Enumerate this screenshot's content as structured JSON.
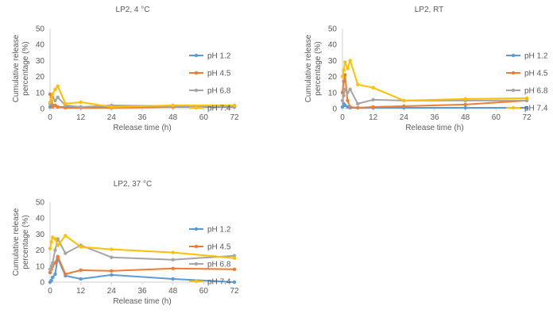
{
  "colors": {
    "pH 1.2": "#5B9BD5",
    "pH 4.5": "#ED7D31",
    "pH 6.8": "#A5A5A5",
    "pH 7.4": "#FFC000"
  },
  "chart_data": [
    {
      "type": "line",
      "title": "LP2, 4 °C",
      "xlabel": "Release time (h)",
      "ylabel": "Cumulative release percentage (%)",
      "xlim": [
        0,
        72
      ],
      "ylim": [
        0,
        50
      ],
      "xticks": [
        0,
        12,
        24,
        36,
        48,
        60,
        72
      ],
      "yticks": [
        0,
        10,
        20,
        30,
        40,
        50
      ],
      "legend": "right",
      "grid": false,
      "series": [
        {
          "name": "pH 1.2",
          "x": [
            0,
            0.5,
            1,
            2,
            3,
            6,
            12,
            24,
            48,
            72
          ],
          "y": [
            1,
            3,
            2,
            2,
            1,
            1,
            1,
            1,
            1,
            1
          ]
        },
        {
          "name": "pH 4.5",
          "x": [
            0,
            0.5,
            1,
            2,
            3,
            6,
            12,
            24,
            48,
            72
          ],
          "y": [
            9,
            7,
            1,
            2,
            1,
            0.5,
            0.5,
            0.5,
            1,
            1.5
          ]
        },
        {
          "name": "pH 6.8",
          "x": [
            0,
            0.5,
            1,
            2,
            3,
            6,
            12,
            24,
            48,
            72
          ],
          "y": [
            3,
            5,
            7,
            5,
            7,
            2,
            1,
            2,
            1.5,
            1.5
          ]
        },
        {
          "name": "pH 7.4",
          "x": [
            0,
            0.5,
            1,
            2,
            3,
            6,
            12,
            24,
            48,
            72
          ],
          "y": [
            4,
            6,
            9,
            12,
            14,
            3,
            4,
            1,
            2,
            2
          ]
        }
      ]
    },
    {
      "type": "line",
      "title": "LP2, RT",
      "xlabel": "Release time (h)",
      "ylabel": "Cumulative release percentage (%)",
      "xlim": [
        0,
        72
      ],
      "ylim": [
        0,
        50
      ],
      "xticks": [
        0,
        12,
        24,
        36,
        48,
        60,
        72
      ],
      "yticks": [
        0,
        10,
        20,
        30,
        40,
        50
      ],
      "legend": "right",
      "grid": false,
      "series": [
        {
          "name": "pH 1.2",
          "x": [
            0,
            0.5,
            1,
            2,
            3,
            6,
            12,
            24,
            48,
            72
          ],
          "y": [
            1,
            3,
            2,
            1,
            0.5,
            0.5,
            0.5,
            0.5,
            0.5,
            0.5
          ]
        },
        {
          "name": "pH 4.5",
          "x": [
            0,
            0.5,
            1,
            2,
            3,
            6,
            12,
            24,
            48,
            72
          ],
          "y": [
            10,
            17,
            21,
            5,
            1,
            0.5,
            1,
            1.5,
            2.5,
            5
          ]
        },
        {
          "name": "pH 6.8",
          "x": [
            0,
            0.5,
            1,
            2,
            3,
            6,
            12,
            24,
            48,
            72
          ],
          "y": [
            5,
            8,
            12,
            10,
            12,
            3,
            5.5,
            5,
            5,
            5
          ]
        },
        {
          "name": "pH 7.4",
          "x": [
            0,
            0.5,
            1,
            2,
            3,
            6,
            12,
            24,
            48,
            72
          ],
          "y": [
            20,
            24,
            29,
            25,
            30,
            15,
            13,
            5,
            6,
            6.5
          ]
        }
      ]
    },
    {
      "type": "line",
      "title": "LP2, 37 °C",
      "xlabel": "Release time (h)",
      "ylabel": "Cumulative release percentage (%)",
      "xlim": [
        0,
        72
      ],
      "ylim": [
        0,
        50
      ],
      "xticks": [
        0,
        12,
        24,
        36,
        48,
        60,
        72
      ],
      "yticks": [
        0,
        10,
        20,
        30,
        40,
        50
      ],
      "legend": "right",
      "grid": false,
      "series": [
        {
          "name": "pH 1.2",
          "x": [
            0,
            0.5,
            1,
            2,
            3,
            6,
            12,
            24,
            48,
            72
          ],
          "y": [
            0,
            1,
            3,
            5,
            15,
            4,
            2,
            4.5,
            2,
            0
          ]
        },
        {
          "name": "pH 4.5",
          "x": [
            0,
            0.5,
            1,
            2,
            3,
            6,
            12,
            24,
            48,
            72
          ],
          "y": [
            6,
            8,
            10,
            12,
            16,
            5,
            7.5,
            7,
            8.5,
            8
          ]
        },
        {
          "name": "pH 6.8",
          "x": [
            0,
            0.5,
            1,
            2,
            3,
            6,
            12,
            24,
            48,
            72
          ],
          "y": [
            8,
            10,
            12,
            20,
            27,
            18,
            23,
            15.5,
            14,
            16.5
          ]
        },
        {
          "name": "pH 7.4",
          "x": [
            0,
            0.5,
            1,
            2,
            3,
            6,
            12,
            24,
            48,
            72
          ],
          "y": [
            21,
            25,
            28,
            27,
            23,
            29,
            22,
            20.5,
            18.5,
            15
          ]
        }
      ]
    }
  ]
}
